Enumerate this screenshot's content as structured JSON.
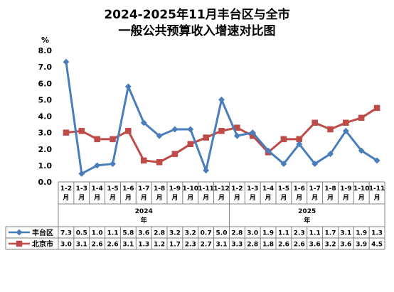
{
  "chart_data": {
    "type": "line",
    "title_line1": "2024-2025年11月丰台区与全市",
    "title_line2": "一般公共预算收入增速对比图",
    "y_unit": "%",
    "ylim": [
      0,
      8
    ],
    "y_ticks": [
      "0.0",
      "1.0",
      "2.0",
      "3.0",
      "4.0",
      "5.0",
      "6.0",
      "7.0",
      "8.0"
    ],
    "categories": [
      "1-2",
      "1-3",
      "1-4",
      "1-5",
      "1-6",
      "1-7",
      "1-8",
      "1-9",
      "1-10",
      "1-11",
      "1-12",
      "1-2",
      "1-3",
      "1-4",
      "1-5",
      "1-6",
      "1-7",
      "1-8",
      "1-9",
      "1-10",
      "1-11"
    ],
    "category_suffix": "月",
    "year_groups": [
      {
        "year": "2024",
        "suffix": "年",
        "count": 11
      },
      {
        "year": "2025",
        "suffix": "年",
        "count": 10
      }
    ],
    "series": [
      {
        "name": "丰台区",
        "color": "#4a7ebb",
        "marker": "diamond",
        "values": [
          7.3,
          0.5,
          1.0,
          1.1,
          5.8,
          3.6,
          2.8,
          3.2,
          3.2,
          0.7,
          5.0,
          2.8,
          3.0,
          1.9,
          1.1,
          2.3,
          1.1,
          1.7,
          3.1,
          1.9,
          1.3
        ]
      },
      {
        "name": "北京市",
        "color": "#be4b48",
        "marker": "square",
        "values": [
          3.0,
          3.1,
          2.6,
          2.6,
          3.1,
          1.3,
          1.2,
          1.7,
          2.3,
          2.7,
          3.1,
          3.3,
          2.8,
          1.8,
          2.6,
          2.6,
          3.6,
          3.2,
          3.6,
          3.9,
          4.5
        ]
      }
    ],
    "value_labels": {
      "丰台区": [
        "7.3",
        "0.5",
        "1.0",
        "1.1",
        "5.8",
        "3.6",
        "2.8",
        "3.2",
        "3.2",
        "0.7",
        "5.0",
        "2.8",
        "3.0",
        "1.9",
        "1.1",
        "2.3",
        "1.1",
        "1.7",
        "3.1",
        "1.9",
        "1.3"
      ],
      "北京市": [
        "3.0",
        "3.1",
        "2.6",
        "2.6",
        "3.1",
        "1.3",
        "1.2",
        "1.7",
        "2.3",
        "2.7",
        "3.1",
        "3.3",
        "2.8",
        "1.8",
        "2.6",
        "2.6",
        "3.6",
        "3.2",
        "3.6",
        "3.9",
        "4.5"
      ]
    },
    "grid": false,
    "legend": "data-table-left"
  }
}
